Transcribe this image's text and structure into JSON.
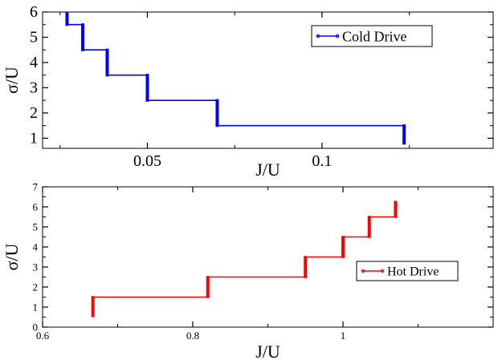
{
  "chart_data": [
    {
      "type": "line",
      "xlabel": "J/U",
      "ylabel": "σ/U",
      "xlim": [
        0.02,
        0.149
      ],
      "ylim": [
        0.6,
        6
      ],
      "xticks": [
        0.05,
        0.1
      ],
      "xtick_labels": [
        "0.05",
        "0.1"
      ],
      "yticks": [
        1,
        2,
        3,
        4,
        5,
        6
      ],
      "ytick_labels": [
        "1",
        "2",
        "3",
        "4",
        "5",
        "6"
      ],
      "grid": false,
      "legend_position": "top-right",
      "series": [
        {
          "name": "Cold Drive",
          "color": "#0000ff",
          "points": [
            [
              0.1235,
              0.75
            ],
            [
              0.1235,
              1.5
            ],
            [
              0.07,
              1.5
            ],
            [
              0.07,
              2.5
            ],
            [
              0.05,
              2.5
            ],
            [
              0.05,
              3.5
            ],
            [
              0.0385,
              3.5
            ],
            [
              0.0385,
              4.5
            ],
            [
              0.0315,
              4.5
            ],
            [
              0.0315,
              5.5
            ],
            [
              0.027,
              5.5
            ],
            [
              0.027,
              6.0
            ]
          ],
          "jumps": [
            {
              "x": 0.1235,
              "y1": 0.75,
              "y2": 1.55
            },
            {
              "x": 0.07,
              "y1": 1.45,
              "y2": 2.55
            },
            {
              "x": 0.05,
              "y1": 2.45,
              "y2": 3.55
            },
            {
              "x": 0.0385,
              "y1": 3.45,
              "y2": 4.55
            },
            {
              "x": 0.0315,
              "y1": 4.45,
              "y2": 5.55
            },
            {
              "x": 0.027,
              "y1": 5.45,
              "y2": 6.0
            }
          ]
        }
      ]
    },
    {
      "type": "line",
      "xlabel": "J/U",
      "ylabel": "σ/U",
      "xlim": [
        0.6,
        1.2
      ],
      "ylim": [
        0,
        7
      ],
      "xticks": [
        0.6,
        0.8,
        1.0
      ],
      "xtick_labels": [
        "0.6",
        "0.8",
        "1"
      ],
      "yticks": [
        0,
        1,
        2,
        3,
        4,
        5,
        6,
        7
      ],
      "ytick_labels": [
        "0",
        "1",
        "2",
        "3",
        "4",
        "5",
        "6",
        "7"
      ],
      "grid": false,
      "legend_position": "center-right",
      "series": [
        {
          "name": "Hot Drive",
          "color": "#ff0000",
          "points": [
            [
              0.667,
              0.5
            ],
            [
              0.667,
              1.5
            ],
            [
              0.82,
              1.5
            ],
            [
              0.82,
              2.5
            ],
            [
              0.95,
              2.5
            ],
            [
              0.95,
              3.5
            ],
            [
              1.0,
              3.5
            ],
            [
              1.0,
              4.5
            ],
            [
              1.035,
              4.5
            ],
            [
              1.035,
              5.5
            ],
            [
              1.07,
              5.5
            ],
            [
              1.07,
              6.3
            ]
          ],
          "jumps": [
            {
              "x": 0.667,
              "y1": 0.5,
              "y2": 1.55
            },
            {
              "x": 0.82,
              "y1": 1.45,
              "y2": 2.55
            },
            {
              "x": 0.95,
              "y1": 2.45,
              "y2": 3.55
            },
            {
              "x": 1.0,
              "y1": 3.45,
              "y2": 4.55
            },
            {
              "x": 1.035,
              "y1": 4.45,
              "y2": 5.55
            },
            {
              "x": 1.07,
              "y1": 5.45,
              "y2": 6.3
            }
          ]
        }
      ]
    }
  ]
}
